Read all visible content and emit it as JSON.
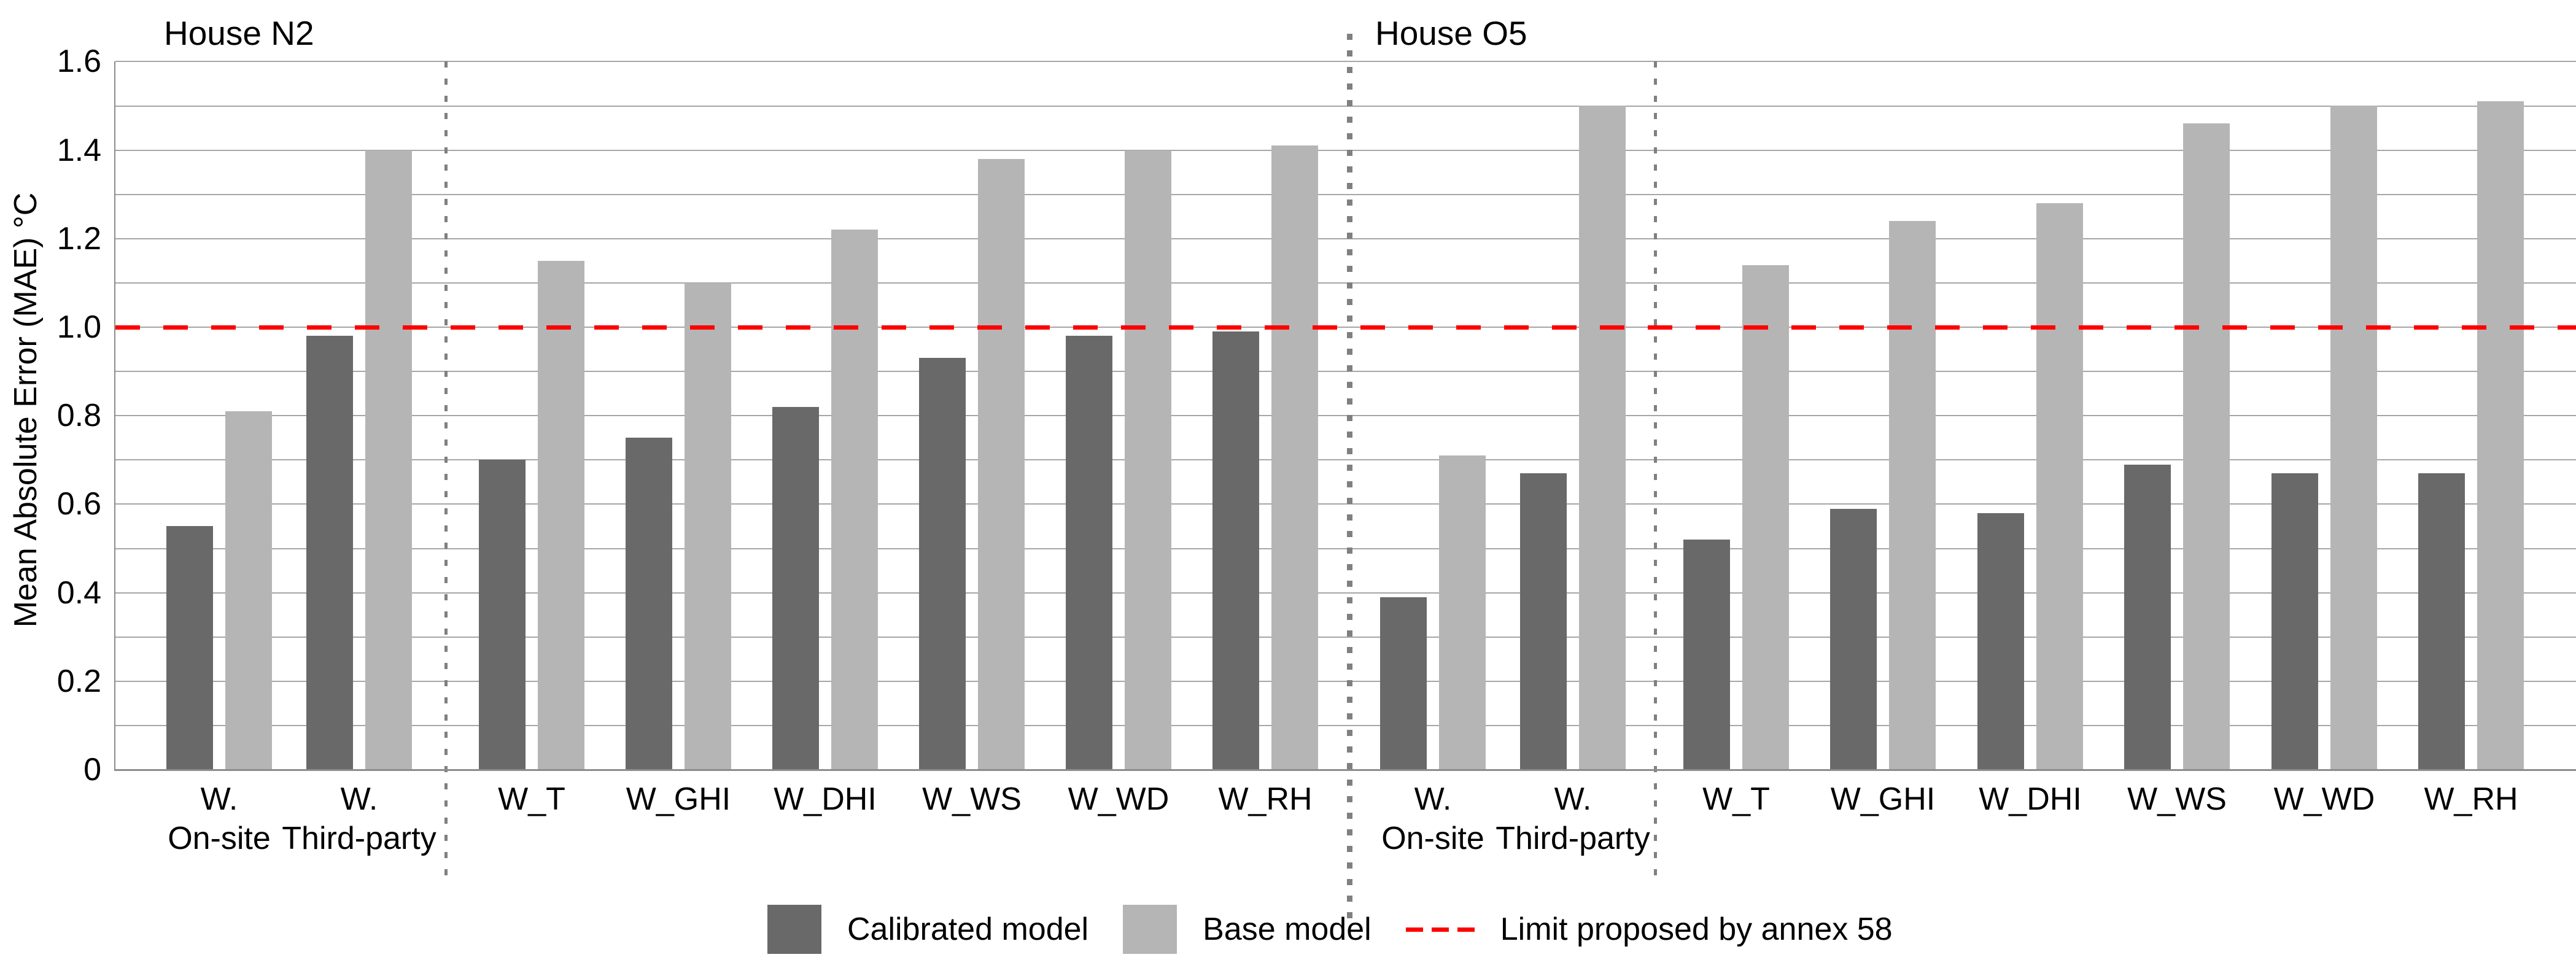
{
  "chart_data": {
    "type": "bar",
    "ylabel": "Mean Absolute Error (MAE) °C",
    "ylim": [
      0,
      1.6
    ],
    "ytick_labels": [
      "0",
      "0.2",
      "0.4",
      "0.6",
      "0.8",
      "1.0",
      "1.2",
      "1.4",
      "1.6"
    ],
    "minor_gridline_step": 0.1,
    "grid": true,
    "legend_position": "bottom",
    "reference_line": {
      "value": 1.0,
      "label": "Limit proposed by annex 58",
      "color": "#ff0000",
      "style": "dashed"
    },
    "series": [
      {
        "name": "Calibrated model",
        "color": "#696969"
      },
      {
        "name": "Base model",
        "color": "#b5b5b5"
      }
    ],
    "sections": [
      {
        "title": "House N2",
        "groups": [
          {
            "label": [
              "W.",
              "On-site"
            ],
            "calibrated": 0.55,
            "base": 0.81
          },
          {
            "label": [
              "W.",
              "Third-party"
            ],
            "calibrated": 0.98,
            "base": 1.4
          },
          {
            "label": [
              "W_T"
            ],
            "calibrated": 0.7,
            "base": 1.15
          },
          {
            "label": [
              "W_GHI"
            ],
            "calibrated": 0.75,
            "base": 1.1
          },
          {
            "label": [
              "W_DHI"
            ],
            "calibrated": 0.82,
            "base": 1.22
          },
          {
            "label": [
              "W_WS"
            ],
            "calibrated": 0.93,
            "base": 1.38
          },
          {
            "label": [
              "W_WD"
            ],
            "calibrated": 0.98,
            "base": 1.4
          },
          {
            "label": [
              "W_RH"
            ],
            "calibrated": 0.99,
            "base": 1.41
          }
        ]
      },
      {
        "title": "House O5",
        "groups": [
          {
            "label": [
              "W.",
              "On-site"
            ],
            "calibrated": 0.39,
            "base": 0.71
          },
          {
            "label": [
              "W.",
              "Third-party"
            ],
            "calibrated": 0.67,
            "base": 1.5
          },
          {
            "label": [
              "W_T"
            ],
            "calibrated": 0.52,
            "base": 1.14
          },
          {
            "label": [
              "W_GHI"
            ],
            "calibrated": 0.59,
            "base": 1.24
          },
          {
            "label": [
              "W_DHI"
            ],
            "calibrated": 0.58,
            "base": 1.28
          },
          {
            "label": [
              "W_WS"
            ],
            "calibrated": 0.69,
            "base": 1.46
          },
          {
            "label": [
              "W_WD"
            ],
            "calibrated": 0.67,
            "base": 1.5
          },
          {
            "label": [
              "W_RH"
            ],
            "calibrated": 0.67,
            "base": 1.51
          }
        ]
      }
    ],
    "colors": {
      "calibrated": "#696969",
      "base": "#b5b5b5",
      "gridline": "#a6a6a6",
      "axis": "#8c8c8c",
      "separator": "#808080",
      "reference": "#ff0000"
    }
  }
}
